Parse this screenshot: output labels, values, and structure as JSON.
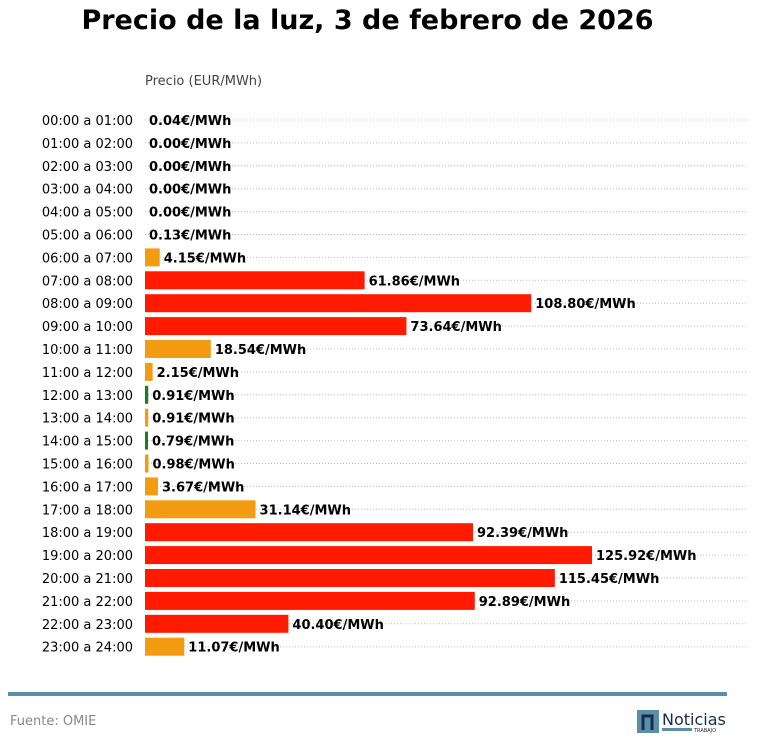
{
  "chart_data": {
    "type": "bar",
    "orientation": "horizontal",
    "title": "Precio de la luz, 3 de febrero de 2026",
    "xlabel": "Precio (EUR/MWh)",
    "unit_suffix": "€/MWh",
    "grid": "dotted horizontal",
    "categories": [
      "00:00 a 01:00",
      "01:00 a 02:00",
      "02:00 a 03:00",
      "03:00 a 04:00",
      "04:00 a 05:00",
      "05:00 a 06:00",
      "06:00 a 07:00",
      "07:00 a 08:00",
      "08:00 a 09:00",
      "09:00 a 10:00",
      "10:00 a 11:00",
      "11:00 a 12:00",
      "12:00 a 13:00",
      "13:00 a 14:00",
      "14:00 a 15:00",
      "15:00 a 16:00",
      "16:00 a 17:00",
      "17:00 a 18:00",
      "18:00 a 19:00",
      "19:00 a 20:00",
      "20:00 a 21:00",
      "21:00 a 22:00",
      "22:00 a 23:00",
      "23:00 a 24:00"
    ],
    "values": [
      0.04,
      0.0,
      0.0,
      0.0,
      0.0,
      0.13,
      4.15,
      61.86,
      108.8,
      73.64,
      18.54,
      2.15,
      0.91,
      0.91,
      0.79,
      0.98,
      3.67,
      31.14,
      92.39,
      125.92,
      115.45,
      92.89,
      40.4,
      11.07
    ],
    "labels": [
      "0.04€/MWh",
      "0.00€/MWh",
      "0.00€/MWh",
      "0.00€/MWh",
      "0.00€/MWh",
      "0.13€/MWh",
      "4.15€/MWh",
      "61.86€/MWh",
      "108.80€/MWh",
      "73.64€/MWh",
      "18.54€/MWh",
      "2.15€/MWh",
      "0.91€/MWh",
      "0.91€/MWh",
      "0.79€/MWh",
      "0.98€/MWh",
      "3.67€/MWh",
      "31.14€/MWh",
      "92.39€/MWh",
      "125.92€/MWh",
      "115.45€/MWh",
      "92.89€/MWh",
      "40.40€/MWh",
      "11.07€/MWh"
    ],
    "bar_colors": [
      "#f39c12",
      "#f39c12",
      "#f39c12",
      "#f39c12",
      "#f39c12",
      "#f39c12",
      "#f39c12",
      "#ff1a00",
      "#ff1a00",
      "#ff1a00",
      "#f39c12",
      "#f39c12",
      "#1e7b1e",
      "#f39c12",
      "#1e7b1e",
      "#f39c12",
      "#f39c12",
      "#f39c12",
      "#ff1a00",
      "#ff1a00",
      "#ff1a00",
      "#ff1a00",
      "#ff1a00",
      "#f39c12"
    ]
  },
  "footer": {
    "source": "Fuente: OMIE",
    "logo_text": "Noticias",
    "logo_sub": "TRABAJO",
    "rule_color": "#5b8fa8"
  }
}
